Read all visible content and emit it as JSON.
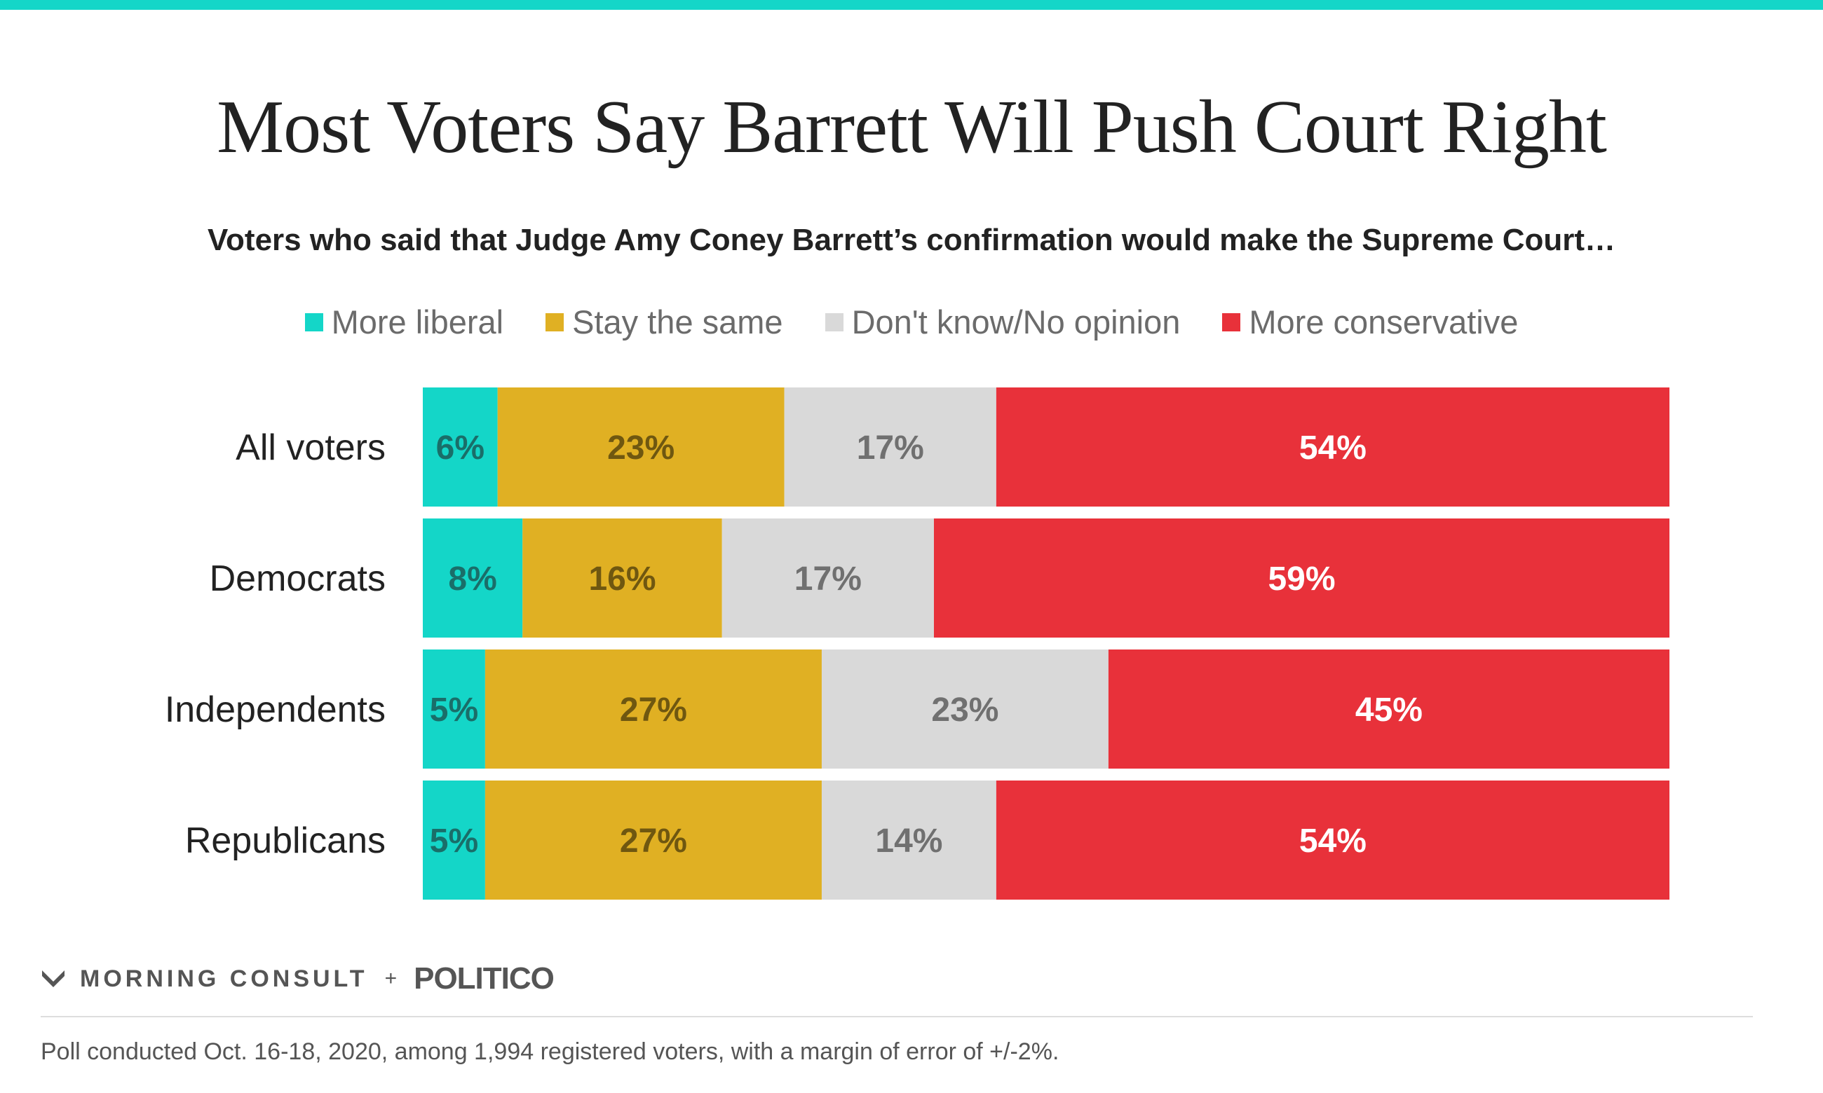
{
  "title": "Most Voters Say Barrett Will Push Court Right",
  "subtitle": "Voters who said that Judge Amy Coney Barrett’s confirmation would make the Supreme Court…",
  "legend": [
    {
      "label": "More liberal",
      "color": "#14d6c8"
    },
    {
      "label": "Stay the same",
      "color": "#e0b023"
    },
    {
      "label": "Don't know/No opinion",
      "color": "#d9d9d9"
    },
    {
      "label": "More conservative",
      "color": "#e8313a"
    }
  ],
  "chart_data": {
    "type": "bar",
    "orientation": "horizontal",
    "stacked": true,
    "title": "Most Voters Say Barrett Will Push Court Right",
    "subtitle": "Voters who said that Judge Amy Coney Barrett’s confirmation would make the Supreme Court…",
    "categories": [
      "All voters",
      "Democrats",
      "Independents",
      "Republicans"
    ],
    "series": [
      {
        "name": "More liberal",
        "color": "#14d6c8",
        "label_color": "#1a6e69",
        "values": [
          6,
          8,
          5,
          5
        ]
      },
      {
        "name": "Stay the same",
        "color": "#e0b023",
        "label_color": "#6f5710",
        "values": [
          23,
          16,
          27,
          27
        ]
      },
      {
        "name": "Don't know/No opinion",
        "color": "#d9d9d9",
        "label_color": "#707070",
        "values": [
          17,
          17,
          23,
          14
        ]
      },
      {
        "name": "More conservative",
        "color": "#e8313a",
        "label_color": "#ffffff",
        "values": [
          54,
          59,
          45,
          54
        ]
      }
    ],
    "value_suffix": "%",
    "xlim": [
      0,
      100
    ],
    "legend_position": "top-center",
    "grid": false
  },
  "branding": {
    "logo1": "MORNING CONSULT",
    "plus": "+",
    "logo2": "POLITICO"
  },
  "footnote": "Poll conducted Oct. 16-18, 2020, among 1,994 registered voters, with a margin of error of +/-2%."
}
